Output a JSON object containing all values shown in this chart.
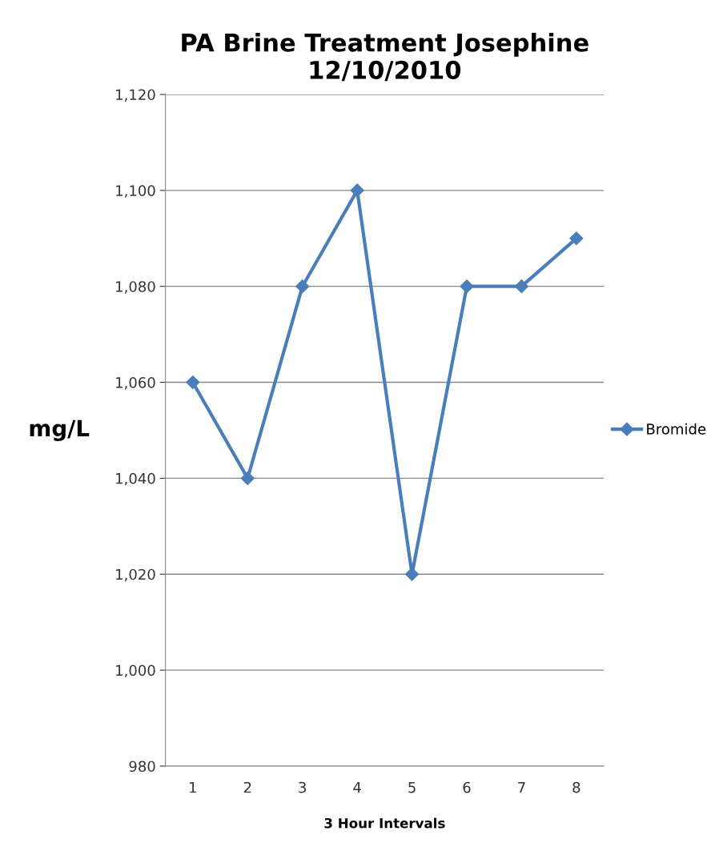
{
  "chart_data": {
    "type": "line",
    "title": "PA Brine Treatment Josephine\n12/10/2010",
    "xlabel": "3 Hour Intervals",
    "ylabel": "mg/L",
    "categories": [
      "1",
      "2",
      "3",
      "4",
      "5",
      "6",
      "7",
      "8"
    ],
    "series": [
      {
        "name": "Bromide",
        "color": "#4a7ebb",
        "values": [
          1060,
          1040,
          1080,
          1100,
          1020,
          1080,
          1080,
          1090
        ]
      }
    ],
    "ylim": [
      980,
      1120
    ],
    "yticks": [
      {
        "value": 980,
        "label": "980"
      },
      {
        "value": 1000,
        "label": "1,000"
      },
      {
        "value": 1020,
        "label": "1,020"
      },
      {
        "value": 1040,
        "label": "1,040"
      },
      {
        "value": 1060,
        "label": "1,060"
      },
      {
        "value": 1080,
        "label": "1,080"
      },
      {
        "value": 1100,
        "label": "1,100"
      },
      {
        "value": 1120,
        "label": "1,120"
      }
    ],
    "grid": "y",
    "legend": "right",
    "marker": "diamond",
    "line_style": "solid"
  }
}
